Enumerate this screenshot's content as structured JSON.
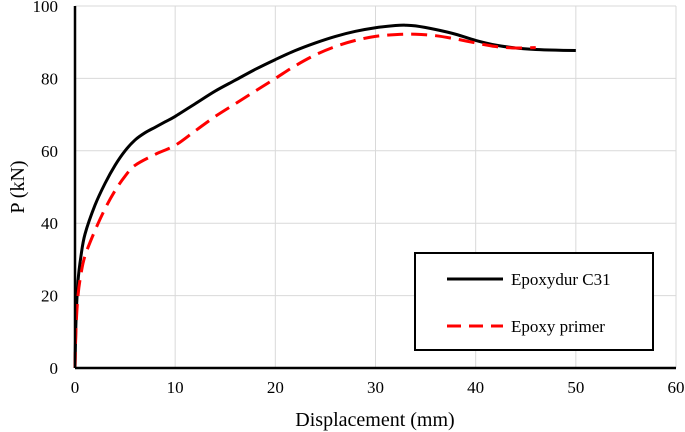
{
  "chart_data": {
    "type": "line",
    "title": "",
    "xlabel": "Displacement (mm)",
    "ylabel": "P (kN)",
    "xlim": [
      0,
      60
    ],
    "ylim": [
      0,
      100
    ],
    "xticks": [
      "0",
      "10",
      "20",
      "30",
      "40",
      "50",
      "60"
    ],
    "yticks": [
      "0",
      "20",
      "40",
      "60",
      "80",
      "100"
    ],
    "grid": true,
    "legend_position": "bottom-right",
    "series": [
      {
        "name": "Epoxydur C31",
        "color": "#000000",
        "style": "solid",
        "x": [
          0,
          0.1,
          0.3,
          0.6,
          1,
          2,
          3,
          4,
          5,
          6,
          7,
          8,
          9,
          10,
          12,
          14,
          16,
          18,
          20,
          22,
          24,
          26,
          28,
          30,
          32,
          33,
          34,
          36,
          38,
          40,
          42,
          44,
          46,
          48,
          50
        ],
        "y": [
          0,
          13,
          24,
          31,
          37,
          45,
          51,
          56,
          60,
          63,
          65,
          66.5,
          68,
          69.5,
          73,
          76.5,
          79.5,
          82.5,
          85.2,
          87.7,
          89.8,
          91.6,
          93,
          94,
          94.6,
          94.7,
          94.5,
          93.5,
          92.2,
          90.5,
          89.2,
          88.4,
          88,
          87.8,
          87.7
        ]
      },
      {
        "name": "Epoxy primer",
        "color": "#ff0000",
        "style": "dashed",
        "x": [
          0,
          0.1,
          0.3,
          0.6,
          1,
          2,
          3,
          4,
          5,
          6,
          8,
          10,
          12,
          14,
          16,
          18,
          20,
          22,
          24,
          26,
          28,
          30,
          32,
          34,
          36,
          38,
          40,
          42,
          44,
          46
        ],
        "y": [
          0,
          11,
          20,
          26,
          31,
          38,
          44,
          49,
          53,
          56,
          59,
          61.5,
          65.5,
          69.5,
          73,
          76.5,
          80,
          83.5,
          86.5,
          88.8,
          90.5,
          91.6,
          92.1,
          92.2,
          91.8,
          90.9,
          89.8,
          88.8,
          88.4,
          88.5
        ]
      }
    ]
  }
}
